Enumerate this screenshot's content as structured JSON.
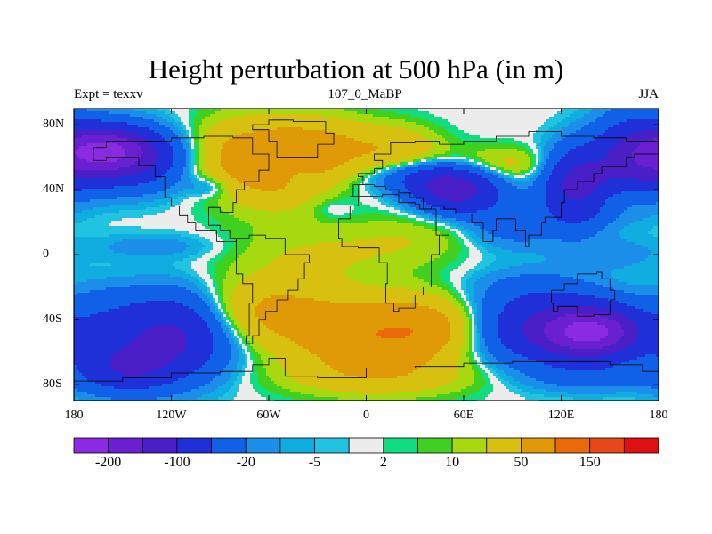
{
  "title": "Height perturbation at 500 hPa (in m)",
  "subtitle_left": "Expt = texxv",
  "subtitle_center": "107_0_MaBP",
  "subtitle_right": "JJA",
  "map": {
    "projection": "cylindrical-equidistant",
    "lon_range": [
      -180,
      180
    ],
    "lat_range": [
      -90,
      90
    ],
    "y_ticks": [
      {
        "value": 80,
        "label": "80N"
      },
      {
        "value": 40,
        "label": "40N"
      },
      {
        "value": 0,
        "label": "0"
      },
      {
        "value": -40,
        "label": "40S"
      },
      {
        "value": -80,
        "label": "80S"
      }
    ],
    "x_ticks": [
      {
        "value": -180,
        "label": "180"
      },
      {
        "value": -120,
        "label": "120W"
      },
      {
        "value": -60,
        "label": "60W"
      },
      {
        "value": 0,
        "label": "0"
      },
      {
        "value": 60,
        "label": "60E"
      },
      {
        "value": 120,
        "label": "120E"
      },
      {
        "value": 180,
        "label": "180"
      }
    ],
    "outlines_color": "#000000"
  },
  "colorbar": {
    "colors": [
      "#8a2be2",
      "#6a1fd0",
      "#4a1fc8",
      "#2030d8",
      "#1060e8",
      "#1a8ee8",
      "#10aee0",
      "#20c4e0",
      "#ececec",
      "#10dc80",
      "#40d020",
      "#a8d810",
      "#d8c010",
      "#e09a08",
      "#e86a08",
      "#e84818",
      "#e01010"
    ],
    "labels": [
      {
        "boundary": 1,
        "text": "-200"
      },
      {
        "boundary": 3,
        "text": "-100"
      },
      {
        "boundary": 5,
        "text": "-20"
      },
      {
        "boundary": 7,
        "text": "-5"
      },
      {
        "boundary": 9,
        "text": "2"
      },
      {
        "boundary": 11,
        "text": "10"
      },
      {
        "boundary": 13,
        "text": "50"
      },
      {
        "boundary": 15,
        "text": "150"
      }
    ]
  },
  "field": {
    "units": "m",
    "features": [
      {
        "lon": -160,
        "lat": 65,
        "v": -140,
        "rx": 28,
        "ry": 14
      },
      {
        "lon": -150,
        "lat": 58,
        "v": -90,
        "rx": 40,
        "ry": 18
      },
      {
        "lon": -95,
        "lat": 42,
        "v": -25,
        "rx": 14,
        "ry": 7
      },
      {
        "lon": -85,
        "lat": 60,
        "v": 45,
        "rx": 28,
        "ry": 22
      },
      {
        "lon": -55,
        "lat": 55,
        "v": 60,
        "rx": 30,
        "ry": 25
      },
      {
        "lon": -40,
        "lat": 48,
        "v": -25,
        "rx": 10,
        "ry": 9
      },
      {
        "lon": -25,
        "lat": 65,
        "v": 55,
        "rx": 35,
        "ry": 18
      },
      {
        "lon": -20,
        "lat": 28,
        "v": -8,
        "rx": 12,
        "ry": 6
      },
      {
        "lon": 20,
        "lat": 65,
        "v": 35,
        "rx": 25,
        "ry": 14
      },
      {
        "lon": 40,
        "lat": 48,
        "v": -60,
        "rx": 35,
        "ry": 10
      },
      {
        "lon": 55,
        "lat": 38,
        "v": -110,
        "rx": 25,
        "ry": 12
      },
      {
        "lon": 60,
        "lat": 58,
        "v": 10,
        "rx": 30,
        "ry": 10
      },
      {
        "lon": 90,
        "lat": 55,
        "v": 25,
        "rx": 25,
        "ry": 10
      },
      {
        "lon": 90,
        "lat": 20,
        "v": -35,
        "rx": 30,
        "ry": 16
      },
      {
        "lon": 130,
        "lat": 42,
        "v": -120,
        "rx": 20,
        "ry": 22
      },
      {
        "lon": 165,
        "lat": 60,
        "v": -100,
        "rx": 25,
        "ry": 25
      },
      {
        "lon": 150,
        "lat": 35,
        "v": 20,
        "rx": 30,
        "ry": 8
      },
      {
        "lon": -130,
        "lat": 5,
        "v": -15,
        "rx": 40,
        "ry": 8
      },
      {
        "lon": -30,
        "lat": 0,
        "v": 20,
        "rx": 55,
        "ry": 18
      },
      {
        "lon": 30,
        "lat": 10,
        "v": 15,
        "rx": 40,
        "ry": 15
      },
      {
        "lon": 150,
        "lat": 0,
        "v": -15,
        "rx": 30,
        "ry": 10
      },
      {
        "lon": -165,
        "lat": -40,
        "v": -30,
        "rx": 25,
        "ry": 20
      },
      {
        "lon": -120,
        "lat": -50,
        "v": -110,
        "rx": 35,
        "ry": 25
      },
      {
        "lon": -150,
        "lat": -70,
        "v": -80,
        "rx": 30,
        "ry": 15
      },
      {
        "lon": -60,
        "lat": -35,
        "v": 55,
        "rx": 40,
        "ry": 20
      },
      {
        "lon": 0,
        "lat": -50,
        "v": 85,
        "rx": 45,
        "ry": 22
      },
      {
        "lon": 40,
        "lat": -45,
        "v": 55,
        "rx": 30,
        "ry": 18
      },
      {
        "lon": 10,
        "lat": -75,
        "v": 30,
        "rx": 60,
        "ry": 12
      },
      {
        "lon": 110,
        "lat": -45,
        "v": -90,
        "rx": 45,
        "ry": 22
      },
      {
        "lon": 140,
        "lat": -48,
        "v": -170,
        "rx": 30,
        "ry": 15
      },
      {
        "lon": 100,
        "lat": -20,
        "v": -15,
        "rx": 35,
        "ry": 12
      },
      {
        "lon": 140,
        "lat": -75,
        "v": -25,
        "rx": 40,
        "ry": 10
      }
    ]
  }
}
